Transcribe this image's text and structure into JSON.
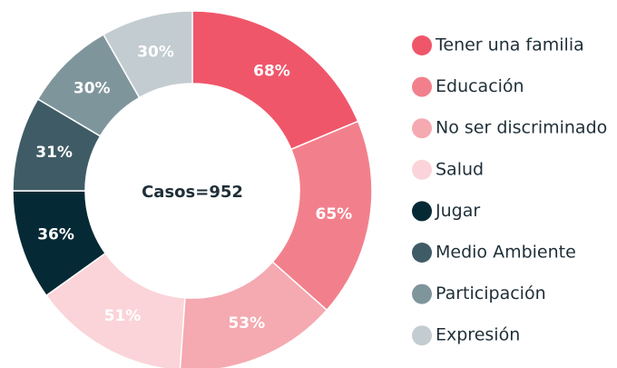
{
  "chart_data": {
    "type": "donut",
    "center_label": "Casos=952",
    "categories": [
      "Tener una familia",
      "Educación",
      "No ser discriminado",
      "Salud",
      "Jugar",
      "Medio Ambiente",
      "Participación",
      "Expresión"
    ],
    "values": [
      68,
      65,
      53,
      51,
      36,
      31,
      30,
      30
    ],
    "value_labels": [
      "68%",
      "65%",
      "53%",
      "51%",
      "36%",
      "31%",
      "30%",
      "30%"
    ],
    "colors": [
      "#f0566a",
      "#f2808c",
      "#f5a9b1",
      "#fad4d8",
      "#062a35",
      "#3f5c66",
      "#7f959c",
      "#c3ccd0"
    ],
    "legend": "right"
  }
}
